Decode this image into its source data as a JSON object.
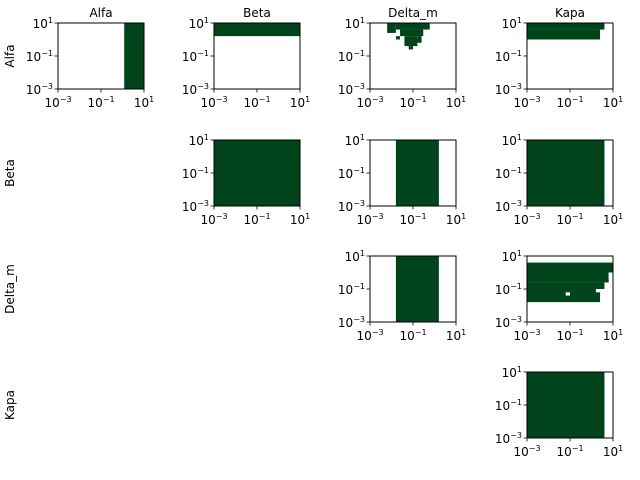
{
  "chart_data": {
    "type": "heatmap",
    "variables": [
      "Alfa",
      "Beta",
      "Delta_m",
      "Kapa"
    ],
    "column_titles": [
      "Alfa",
      "Beta",
      "Delta_m",
      "Kapa"
    ],
    "row_titles": [
      "Alfa",
      "Beta",
      "Delta_m",
      "Kapa"
    ],
    "axis_scale": "log",
    "xlim": [
      0.001,
      10
    ],
    "ylim": [
      0.001,
      10
    ],
    "tick_labels": [
      {
        "base": "10",
        "exp": "−3"
      },
      {
        "base": "10",
        "exp": "−1"
      },
      {
        "base": "10",
        "exp": "1"
      }
    ],
    "fill_color": "#00441b",
    "panels": [
      {
        "row": 0,
        "col": 0,
        "regions": [
          {
            "x": [
              1.2,
              10
            ],
            "y": [
              0.001,
              10
            ]
          }
        ]
      },
      {
        "row": 0,
        "col": 1,
        "regions": [
          {
            "x": [
              0.001,
              10
            ],
            "y": [
              1.6,
              10
            ]
          }
        ]
      },
      {
        "row": 0,
        "col": 2,
        "regions": [
          {
            "x": [
              0.0063,
              0.016
            ],
            "y": [
              2.5,
              10
            ]
          },
          {
            "x": [
              0.016,
              0.6
            ],
            "y": [
              4,
              10
            ]
          },
          {
            "x": [
              0.025,
              0.3
            ],
            "y": [
              1.6,
              4
            ]
          },
          {
            "x": [
              0.016,
              0.025
            ],
            "y": [
              1,
              1.6
            ]
          },
          {
            "x": [
              0.04,
              0.16
            ],
            "y": [
              0.4,
              1.6
            ]
          },
          {
            "x": [
              0.16,
              0.25
            ],
            "y": [
              0.63,
              1.6
            ]
          },
          {
            "x": [
              0.063,
              0.1
            ],
            "y": [
              0.25,
              0.4
            ]
          }
        ]
      },
      {
        "row": 0,
        "col": 3,
        "regions": [
          {
            "x": [
              0.001,
              4
            ],
            "y": [
              4,
              10
            ]
          },
          {
            "x": [
              0.001,
              2.5
            ],
            "y": [
              1,
              4
            ]
          }
        ]
      },
      {
        "row": 1,
        "col": 1,
        "regions": [
          {
            "x": [
              0.001,
              10
            ],
            "y": [
              0.001,
              10
            ]
          }
        ]
      },
      {
        "row": 1,
        "col": 2,
        "regions": [
          {
            "x": [
              0.016,
              1.6
            ],
            "y": [
              0.001,
              10
            ]
          }
        ]
      },
      {
        "row": 1,
        "col": 3,
        "regions": [
          {
            "x": [
              0.001,
              4
            ],
            "y": [
              0.001,
              10
            ]
          }
        ]
      },
      {
        "row": 2,
        "col": 2,
        "regions": [
          {
            "x": [
              0.016,
              1.6
            ],
            "y": [
              0.001,
              10
            ]
          }
        ]
      },
      {
        "row": 2,
        "col": 3,
        "regions": [
          {
            "x": [
              0.001,
              10
            ],
            "y": [
              1,
              4
            ]
          },
          {
            "x": [
              0.001,
              6.3
            ],
            "y": [
              0.25,
              1
            ]
          },
          {
            "x": [
              0.001,
              4
            ],
            "y": [
              0.1,
              0.25
            ]
          },
          {
            "x": [
              0.001,
              2.5
            ],
            "y": [
              0.016,
              0.1
            ]
          }
        ],
        "holes": [
          {
            "x": [
              6.3,
              10
            ],
            "y": [
              0.4,
              1
            ]
          },
          {
            "x": [
              0.063,
              0.1
            ],
            "y": [
              0.04,
              0.063
            ]
          },
          {
            "x": [
              1.6,
              2.5
            ],
            "y": [
              0.063,
              0.1
            ]
          }
        ]
      },
      {
        "row": 3,
        "col": 3,
        "regions": [
          {
            "x": [
              0.001,
              4
            ],
            "y": [
              0.001,
              10
            ]
          }
        ]
      }
    ]
  }
}
